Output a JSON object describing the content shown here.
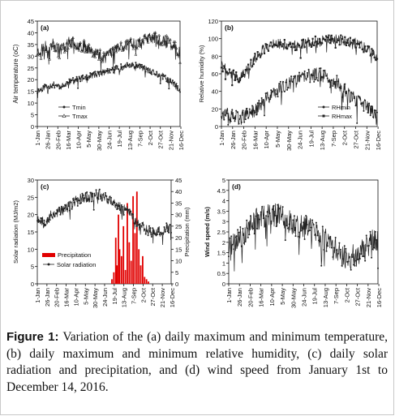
{
  "colors": {
    "axis": "#111111",
    "line": "#222222",
    "precip": "#e10000",
    "plot_bg": "#ffffff"
  },
  "caption": {
    "label": "Figure 1:",
    "text": "Variation of the (a) daily maximum and minimum temperature, (b) daily maximum and minimum relative humidity, (c) daily solar radiation and precipitation, and (d) wind speed from January 1st to December 14, 2016."
  },
  "chart_data": [
    {
      "type": "line",
      "panel_label": "(a)",
      "ylabel": "Air temperature (oC)",
      "ylim": [
        0,
        45
      ],
      "yticks": [
        0,
        5,
        10,
        15,
        20,
        25,
        30,
        35,
        40,
        45
      ],
      "xtick_labels": [
        "1-Jan",
        "26-Jan",
        "20-Feb",
        "16-Mar",
        "10-Apr",
        "5-May",
        "30-May",
        "24-Jun",
        "19-Jul",
        "13-Aug",
        "7-Sep",
        "2-Oct",
        "27-Oct",
        "21-Nov",
        "16-Dec"
      ],
      "legend": "bottom-left",
      "series": [
        {
          "name": "Tmin",
          "x": [
            1,
            20,
            40,
            60,
            80,
            100,
            120,
            140,
            160,
            180,
            200,
            220,
            240,
            260,
            280,
            300,
            320,
            335,
            349
          ],
          "values": [
            15,
            17,
            18,
            17,
            19,
            20,
            21,
            22,
            23,
            24,
            25,
            26,
            26,
            25,
            23,
            22,
            20,
            18,
            15
          ]
        },
        {
          "name": "Tmax",
          "x": [
            1,
            20,
            40,
            60,
            80,
            100,
            120,
            140,
            160,
            180,
            200,
            220,
            240,
            260,
            280,
            300,
            320,
            335,
            349
          ],
          "values": [
            32,
            34,
            35,
            33,
            36,
            35,
            34,
            32,
            30,
            32,
            34,
            35,
            36,
            37,
            38,
            37,
            36,
            34,
            31
          ]
        }
      ]
    },
    {
      "type": "line",
      "panel_label": "(b)",
      "ylabel": "Relative humidity (%)",
      "ylim": [
        0,
        120
      ],
      "yticks": [
        0,
        20,
        40,
        60,
        80,
        100,
        120
      ],
      "xtick_labels": [
        "1-Jan",
        "26-Jan",
        "20-Feb",
        "16-Mar",
        "10-Apr",
        "5-May",
        "30-May",
        "24-Jun",
        "19-Jul",
        "13-Aug",
        "7-Sep",
        "2-Oct",
        "27-Oct",
        "21-Nov",
        "16-Dec"
      ],
      "legend": "bottom-right",
      "series": [
        {
          "name": "RHmin",
          "x": [
            1,
            20,
            40,
            60,
            80,
            100,
            120,
            140,
            160,
            180,
            200,
            220,
            240,
            260,
            280,
            300,
            320,
            335,
            349
          ],
          "values": [
            15,
            12,
            10,
            14,
            20,
            30,
            40,
            45,
            50,
            55,
            58,
            60,
            55,
            50,
            40,
            30,
            25,
            18,
            15
          ]
        },
        {
          "name": "RHmax",
          "x": [
            1,
            20,
            40,
            60,
            80,
            100,
            120,
            140,
            160,
            180,
            200,
            220,
            240,
            260,
            280,
            300,
            320,
            335,
            349
          ],
          "values": [
            70,
            60,
            55,
            65,
            80,
            90,
            95,
            93,
            92,
            94,
            96,
            97,
            98,
            99,
            97,
            95,
            90,
            85,
            75
          ]
        }
      ]
    },
    {
      "type": "line",
      "panel_label": "(c)",
      "ylabel": "Solar radiation (MJ/m2)",
      "ylim": [
        0,
        30
      ],
      "yticks": [
        0,
        5,
        10,
        15,
        20,
        25,
        30
      ],
      "y2label": "Precipitation (mm)",
      "y2lim": [
        0,
        45
      ],
      "y2ticks": [
        0,
        5,
        10,
        15,
        20,
        25,
        30,
        35,
        40,
        45
      ],
      "xtick_labels": [
        "1-Jan",
        "26-Jan",
        "20-Feb",
        "16-Mar",
        "10-Apr",
        "5-May",
        "30-May",
        "24-Jun",
        "19-Jul",
        "13-Aug",
        "7-Sep",
        "2-Oct",
        "27-Oct",
        "21-Nov",
        "16-Dec"
      ],
      "legend": "bottom-left",
      "series": [
        {
          "name": "Solar radiation",
          "x": [
            1,
            20,
            40,
            60,
            80,
            100,
            120,
            140,
            160,
            180,
            200,
            220,
            240,
            260,
            280,
            300,
            320,
            335,
            349
          ],
          "values": [
            19,
            18,
            20,
            21,
            22,
            24,
            25,
            25,
            26,
            25,
            23,
            22,
            21,
            18,
            16,
            15,
            15,
            16,
            16
          ]
        },
        {
          "name": "Precipitation",
          "kind": "bar",
          "x": [
            195,
            200,
            205,
            208,
            212,
            215,
            220,
            225,
            230,
            235,
            240,
            245,
            250,
            255,
            260,
            265,
            270,
            275,
            280,
            285,
            290
          ],
          "values": [
            2,
            5,
            20,
            8,
            30,
            15,
            12,
            25,
            6,
            35,
            18,
            10,
            38,
            22,
            40,
            15,
            8,
            12,
            3,
            2,
            1
          ]
        }
      ]
    },
    {
      "type": "line",
      "panel_label": "(d)",
      "ylabel": "Wind speed (m/s)",
      "ylim": [
        0,
        5
      ],
      "yticks": [
        0,
        0.5,
        1,
        1.5,
        2,
        2.5,
        3,
        3.5,
        4,
        4.5,
        5
      ],
      "xtick_labels": [
        "1-Jan",
        "26-Jan",
        "20-Feb",
        "16-Mar",
        "10-Apr",
        "5-May",
        "30-May",
        "24-Jun",
        "19-Jul",
        "13-Aug",
        "7-Sep",
        "2-Oct",
        "27-Oct",
        "21-Nov",
        "16-Dec"
      ],
      "series": [
        {
          "x": [
            1,
            20,
            40,
            60,
            80,
            100,
            120,
            140,
            160,
            180,
            200,
            220,
            240,
            260,
            280,
            300,
            320,
            335,
            349
          ],
          "values": [
            1.6,
            2.0,
            2.5,
            3.0,
            3.2,
            3.4,
            3.3,
            3.0,
            2.8,
            2.7,
            2.6,
            2.2,
            1.8,
            1.5,
            1.2,
            1.4,
            1.7,
            2.0,
            2.1
          ]
        }
      ]
    }
  ]
}
